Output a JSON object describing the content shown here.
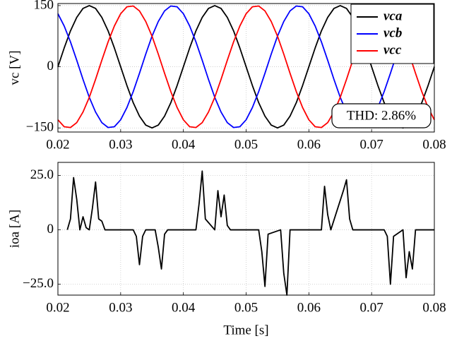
{
  "chart_data": [
    {
      "type": "line",
      "ylabel": "vc [V]",
      "x": [
        0.02,
        0.021,
        0.022,
        0.023,
        0.024,
        0.025,
        0.026,
        0.027,
        0.028,
        0.029,
        0.03,
        0.031,
        0.032,
        0.033,
        0.034,
        0.035,
        0.036,
        0.037,
        0.038,
        0.039,
        0.04,
        0.041,
        0.042,
        0.043,
        0.044,
        0.045,
        0.046,
        0.047,
        0.048,
        0.049,
        0.05,
        0.051,
        0.052,
        0.053,
        0.054,
        0.055,
        0.056,
        0.057,
        0.058,
        0.059,
        0.06,
        0.061,
        0.062,
        0.063,
        0.064,
        0.065,
        0.066,
        0.067,
        0.068,
        0.069,
        0.07,
        0.071,
        0.072,
        0.073,
        0.074,
        0.075,
        0.076,
        0.077,
        0.078,
        0.079,
        0.08
      ],
      "series": [
        {
          "name": "vca",
          "color": "#000000",
          "values": [
            0,
            46,
            88,
            121,
            143,
            150,
            143,
            121,
            88,
            46,
            0,
            -46,
            -88,
            -121,
            -143,
            -150,
            -143,
            -121,
            -88,
            -46,
            0,
            46,
            88,
            121,
            143,
            150,
            143,
            121,
            88,
            46,
            0,
            -46,
            -88,
            -121,
            -143,
            -150,
            -143,
            -121,
            -88,
            -46,
            0,
            46,
            88,
            121,
            143,
            150,
            143,
            121,
            88,
            46,
            0,
            -46,
            -88,
            -121,
            -143,
            -150,
            -143,
            -121,
            -88,
            -46,
            0
          ]
        },
        {
          "name": "vcb",
          "color": "#0000ff",
          "values": [
            130,
            100,
            61,
            16,
            -31,
            -75,
            -111,
            -137,
            -149,
            -147,
            -130,
            -100,
            -61,
            -16,
            31,
            75,
            111,
            137,
            149,
            147,
            130,
            100,
            61,
            16,
            -31,
            -75,
            -111,
            -137,
            -149,
            -147,
            -130,
            -100,
            -61,
            -16,
            31,
            75,
            111,
            137,
            149,
            147,
            130,
            100,
            61,
            16,
            -31,
            -75,
            -111,
            -137,
            -149,
            -147,
            -130,
            -100,
            -61,
            -16,
            31,
            75,
            111,
            137,
            149,
            147,
            130
          ]
        },
        {
          "name": "vcc",
          "color": "#ff0000",
          "values": [
            -130,
            -147,
            -149,
            -137,
            -111,
            -75,
            -31,
            16,
            61,
            100,
            130,
            147,
            149,
            137,
            111,
            75,
            31,
            -16,
            -61,
            -100,
            -130,
            -147,
            -149,
            -137,
            -111,
            -75,
            -31,
            16,
            61,
            100,
            130,
            147,
            149,
            137,
            111,
            75,
            31,
            -16,
            -61,
            -100,
            -130,
            -147,
            -149,
            -137,
            -111,
            -75,
            -31,
            16,
            61,
            100,
            130,
            147,
            149,
            137,
            111,
            75,
            31,
            -16,
            -61,
            -100,
            -130
          ]
        }
      ],
      "xlim": [
        0.02,
        0.08
      ],
      "xticks": [
        0.02,
        0.03,
        0.04,
        0.05,
        0.06,
        0.07,
        0.08
      ],
      "ylim": [
        -160,
        155
      ],
      "yticks": [
        {
          "value": -150,
          "label": "−150"
        },
        0,
        150
      ],
      "grid": true,
      "legend": "upper right",
      "annotation": "THD: 2.86%"
    },
    {
      "type": "line",
      "ylabel": "ioa [A]",
      "xlabel": "Time [s]",
      "x": [
        0.0215,
        0.022,
        0.0225,
        0.023,
        0.0235,
        0.024,
        0.0245,
        0.025,
        0.0255,
        0.026,
        0.0265,
        0.027,
        0.0275,
        0.032,
        0.0325,
        0.033,
        0.0335,
        0.034,
        0.0355,
        0.036,
        0.0365,
        0.037,
        0.0375,
        0.042,
        0.0425,
        0.043,
        0.0435,
        0.045,
        0.0455,
        0.046,
        0.0465,
        0.047,
        0.0475,
        0.052,
        0.0525,
        0.053,
        0.0535,
        0.0555,
        0.056,
        0.0565,
        0.057,
        0.062,
        0.0625,
        0.063,
        0.0635,
        0.0655,
        0.066,
        0.0665,
        0.067,
        0.072,
        0.0725,
        0.073,
        0.0735,
        0.075,
        0.0755,
        0.076,
        0.0765,
        0.077,
        0.08
      ],
      "series": [
        {
          "color": "#000000",
          "values": [
            0,
            5,
            24,
            14,
            0,
            6,
            1,
            0,
            10,
            22,
            5,
            4,
            0,
            0,
            -3,
            -16,
            -3,
            0,
            0,
            -8,
            -18,
            -2,
            0,
            0,
            12,
            27,
            5,
            0,
            18,
            6,
            16,
            2,
            0,
            0,
            -10,
            -26,
            -2,
            0,
            -20,
            -30,
            0,
            0,
            20,
            7,
            0,
            18,
            23,
            5,
            0,
            0,
            -3,
            -25,
            -3,
            0,
            -22,
            -10,
            -18,
            0,
            0
          ]
        }
      ],
      "xlim": [
        0.02,
        0.08
      ],
      "xticks": [
        0.02,
        0.03,
        0.04,
        0.05,
        0.06,
        0.07,
        0.08
      ],
      "ylim": [
        -30,
        31
      ],
      "yticks": [
        {
          "value": -25,
          "label": "−25.0"
        },
        0,
        {
          "value": 25,
          "label": "25.0"
        }
      ],
      "grid": true
    }
  ]
}
